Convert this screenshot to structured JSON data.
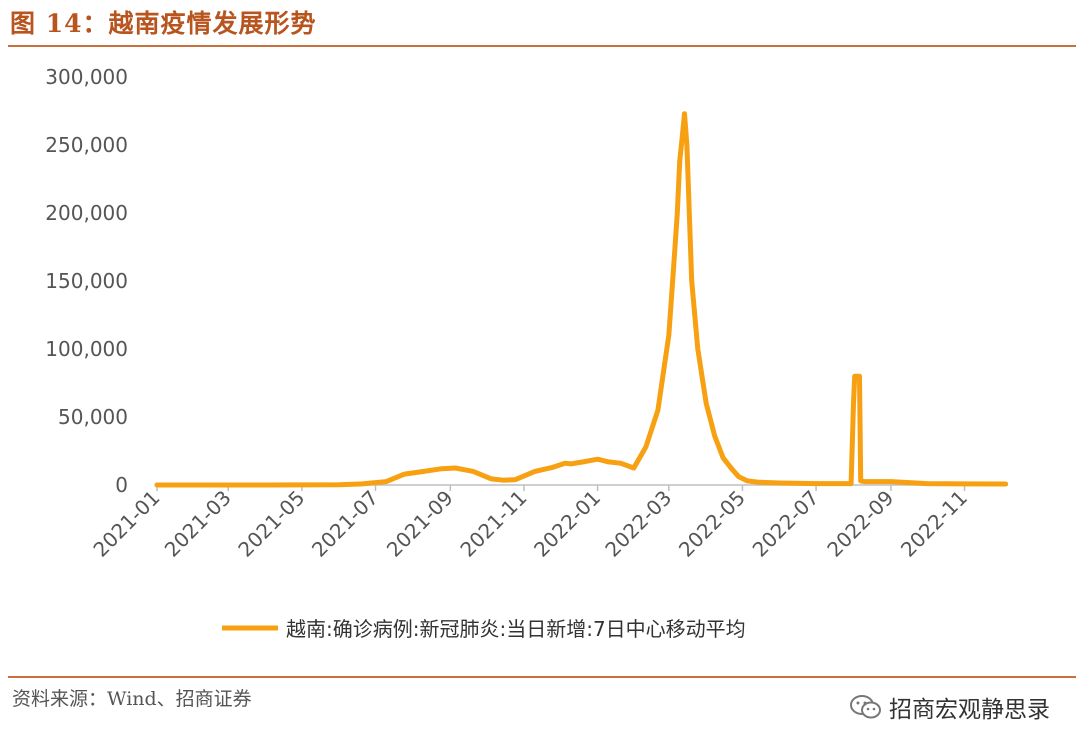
{
  "title": "图 14：越南疫情发展形势",
  "source": "资料来源：Wind、招商证券",
  "watermark": "招商宏观静思录",
  "chart_data": {
    "type": "line",
    "title": "",
    "xlabel": "",
    "ylabel": "",
    "ylim": [
      0,
      300000
    ],
    "yticks": [
      "0",
      "50,000",
      "100,000",
      "150,000",
      "200,000",
      "250,000",
      "300,000"
    ],
    "xticks": [
      "2021-01",
      "2021-03",
      "2021-05",
      "2021-07",
      "2021-09",
      "2021-11",
      "2022-01",
      "2022-03",
      "2022-05",
      "2022-07",
      "2022-09",
      "2022-11"
    ],
    "legend": "bottom",
    "color": "#f7a012",
    "series": [
      {
        "name": "越南:确诊病例:新冠肺炎:当日新增:7日中心移动平均",
        "x": [
          "2021-01-01",
          "2021-04-01",
          "2021-06-01",
          "2021-06-20",
          "2021-07-10",
          "2021-07-25",
          "2021-08-10",
          "2021-08-25",
          "2021-09-05",
          "2021-09-20",
          "2021-10-05",
          "2021-10-15",
          "2021-10-25",
          "2021-11-10",
          "2021-11-25",
          "2021-12-05",
          "2021-12-10",
          "2021-12-20",
          "2022-01-01",
          "2022-01-10",
          "2022-01-20",
          "2022-01-31",
          "2022-02-10",
          "2022-02-20",
          "2022-03-01",
          "2022-03-05",
          "2022-03-08",
          "2022-03-10",
          "2022-03-12",
          "2022-03-14",
          "2022-03-16",
          "2022-03-20",
          "2022-03-25",
          "2022-04-01",
          "2022-04-08",
          "2022-04-15",
          "2022-04-22",
          "2022-04-28",
          "2022-05-05",
          "2022-05-15",
          "2022-06-01",
          "2022-07-01",
          "2022-07-30",
          "2022-08-01",
          "2022-08-02",
          "2022-08-04",
          "2022-08-06",
          "2022-08-07",
          "2022-08-10",
          "2022-09-01",
          "2022-10-01",
          "2022-11-01",
          "2022-12-05"
        ],
        "y": [
          0,
          0,
          200,
          800,
          2500,
          8000,
          10000,
          12000,
          12500,
          10000,
          4500,
          3500,
          4000,
          10000,
          13000,
          16000,
          15500,
          17000,
          19000,
          17000,
          16000,
          12500,
          28000,
          55000,
          110000,
          160000,
          200000,
          238000,
          255000,
          273000,
          250000,
          150000,
          100000,
          60000,
          36000,
          20000,
          12000,
          6000,
          3000,
          2000,
          1500,
          1000,
          1000,
          60000,
          80000,
          80000,
          80000,
          3000,
          2500,
          2500,
          1000,
          800,
          700
        ]
      }
    ]
  }
}
